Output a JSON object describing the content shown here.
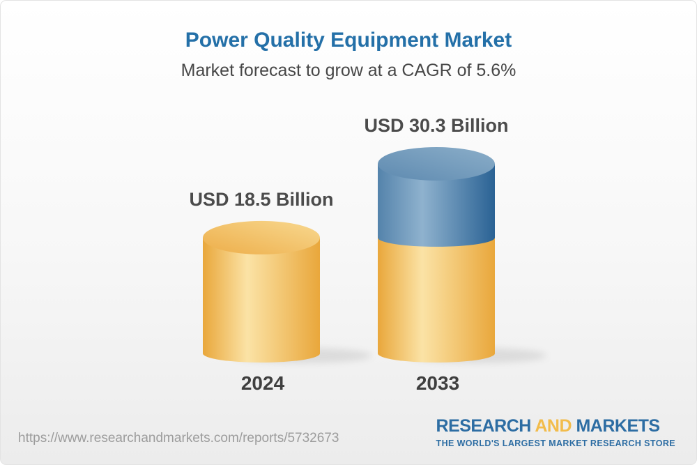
{
  "header": {
    "title": "Power Quality Equipment Market",
    "subtitle": "Market forecast to grow at a CAGR of 5.6%"
  },
  "chart_data": {
    "type": "bar",
    "style": "3d-cylinder",
    "title": "Power Quality Equipment Market",
    "subtitle": "Market forecast to grow at a CAGR of 5.6%",
    "unit": "USD Billion",
    "cagr_percent": 5.6,
    "categories": [
      "2024",
      "2033"
    ],
    "values": [
      18.5,
      30.3
    ],
    "bar_labels": [
      "USD 18.5 Billion",
      "USD 30.3 Billion"
    ],
    "legend": false,
    "axes_shown": false,
    "bars": [
      {
        "category": "2024",
        "label": "USD 18.5 Billion",
        "total": 18.5,
        "segments": [
          {
            "value": 18.5,
            "color_key": "base"
          }
        ]
      },
      {
        "category": "2033",
        "label": "USD 30.3 Billion",
        "total": 30.3,
        "segments": [
          {
            "value": 18.5,
            "color_key": "base"
          },
          {
            "value": 11.8,
            "color_key": "growth"
          }
        ]
      }
    ]
  },
  "footer": {
    "url": "https://www.researchandmarkets.com/reports/5732673",
    "logo": {
      "part1": "RESEARCH",
      "part2": "AND",
      "part3": "MARKETS",
      "tagline": "THE WORLD'S LARGEST MARKET RESEARCH STORE"
    }
  },
  "colors": {
    "title_blue": "#2470A8",
    "text_dark": "#474747",
    "label_gray": "#4B4B4B",
    "year_gray": "#3F3F3F",
    "url_gray": "#9C9C9C",
    "logo_blue": "#2D6DA3",
    "logo_gold": "#F2BC4B",
    "frame_border": "#E3E3E3",
    "bg_bottom": "#ECECEC",
    "base_mid": "#F5C866",
    "base_dark": "#E9A73B",
    "base_light": "#FBE3A6",
    "base_top_dark": "#EDAE4A",
    "base_top_light": "#F8D88F",
    "growth_mid": "#5483AB",
    "growth_dark": "#2A6294",
    "growth_light": "#8FB2CE",
    "growth_top_dark": "#5E8AB0",
    "growth_top_light": "#8BAEC9"
  }
}
